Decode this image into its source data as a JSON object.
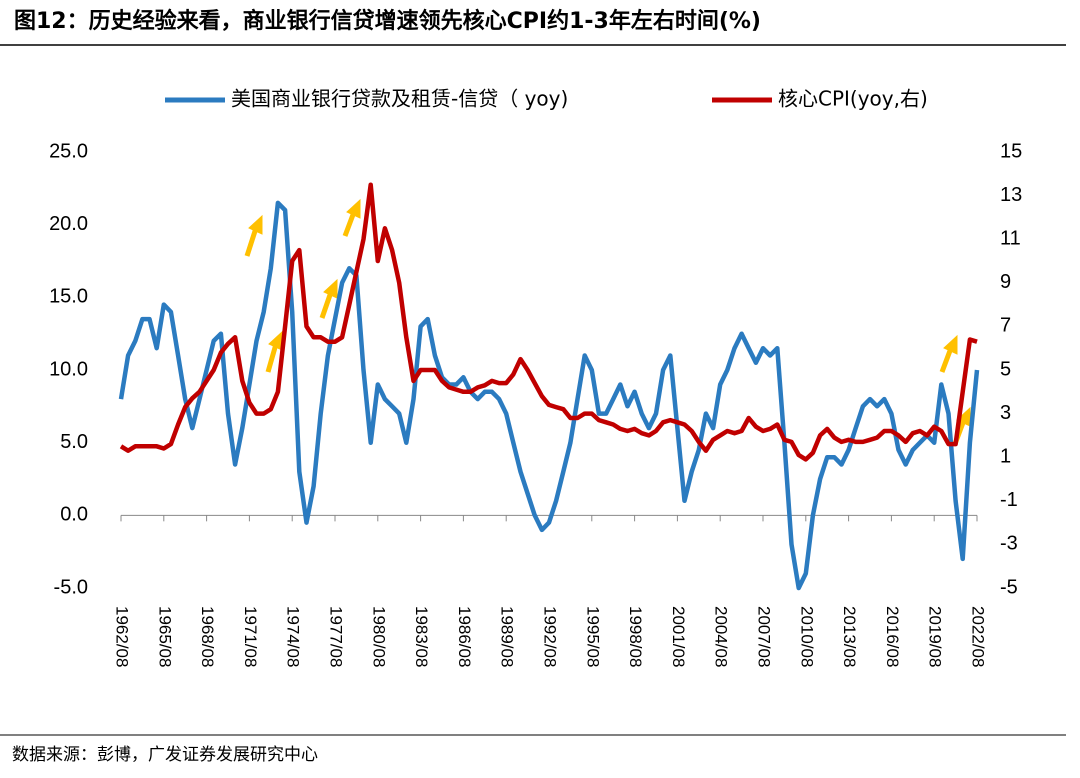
{
  "chart_data": {
    "type": "line",
    "title": "图12：历史经验来看，商业银行信贷增速领先核心CPI约1-3年左右时间(%)",
    "source": "数据来源：彭博，广发证券发展研究中心",
    "x": [
      "1962/08",
      "1963/02",
      "1963/08",
      "1964/02",
      "1964/08",
      "1965/02",
      "1965/08",
      "1966/02",
      "1966/08",
      "1967/02",
      "1967/08",
      "1968/02",
      "1968/08",
      "1969/02",
      "1969/08",
      "1970/02",
      "1970/08",
      "1971/02",
      "1971/08",
      "1972/02",
      "1972/08",
      "1973/02",
      "1973/08",
      "1974/02",
      "1974/08",
      "1975/02",
      "1975/08",
      "1976/02",
      "1976/08",
      "1977/02",
      "1977/08",
      "1978/02",
      "1978/08",
      "1979/02",
      "1979/08",
      "1980/02",
      "1980/08",
      "1981/02",
      "1981/08",
      "1982/02",
      "1982/08",
      "1983/02",
      "1983/08",
      "1984/02",
      "1984/08",
      "1985/02",
      "1985/08",
      "1986/02",
      "1986/08",
      "1987/02",
      "1987/08",
      "1988/02",
      "1988/08",
      "1989/02",
      "1989/08",
      "1990/02",
      "1990/08",
      "1991/02",
      "1991/08",
      "1992/02",
      "1992/08",
      "1993/02",
      "1993/08",
      "1994/02",
      "1994/08",
      "1995/02",
      "1995/08",
      "1996/02",
      "1996/08",
      "1997/02",
      "1997/08",
      "1998/02",
      "1998/08",
      "1999/02",
      "1999/08",
      "2000/02",
      "2000/08",
      "2001/02",
      "2001/08",
      "2002/02",
      "2002/08",
      "2003/02",
      "2003/08",
      "2004/02",
      "2004/08",
      "2005/02",
      "2005/08",
      "2006/02",
      "2006/08",
      "2007/02",
      "2007/08",
      "2008/02",
      "2008/08",
      "2009/02",
      "2009/08",
      "2010/02",
      "2010/08",
      "2011/02",
      "2011/08",
      "2012/02",
      "2012/08",
      "2013/02",
      "2013/08",
      "2014/02",
      "2014/08",
      "2015/02",
      "2015/08",
      "2016/02",
      "2016/08",
      "2017/02",
      "2017/08",
      "2018/02",
      "2018/08",
      "2019/02",
      "2019/08",
      "2020/02",
      "2020/08",
      "2021/02",
      "2021/08",
      "2022/02",
      "2022/08"
    ],
    "series": [
      {
        "name": "美国商业银行贷款及租赁-信贷（ yoy)",
        "color": "#2b7bc0",
        "axis": "y",
        "values": [
          8,
          11,
          12,
          13.5,
          13.5,
          11.5,
          14.5,
          14,
          11,
          8,
          6,
          8,
          10,
          12,
          12.5,
          7,
          3.5,
          6,
          9,
          12,
          14,
          17,
          21.5,
          21,
          14,
          3,
          -0.5,
          2,
          7,
          11,
          13.5,
          16,
          17,
          16.5,
          10,
          5,
          9,
          8,
          7.5,
          7,
          5,
          8,
          13,
          13.5,
          11,
          9.5,
          9,
          9,
          9.5,
          8.5,
          8,
          8.5,
          8.5,
          8,
          7,
          5,
          3,
          1.5,
          0,
          -1,
          -0.5,
          1,
          3,
          5,
          8,
          11,
          10,
          7,
          7,
          8,
          9,
          7.5,
          8.5,
          7,
          6,
          7,
          10,
          11,
          6,
          1,
          3,
          4.5,
          7,
          6,
          9,
          10,
          11.5,
          12.5,
          11.5,
          10.5,
          11.5,
          11,
          11.5,
          5,
          -2,
          -5,
          -4,
          0,
          2.5,
          4,
          4,
          3.5,
          4.5,
          6,
          7.5,
          8,
          7.5,
          8,
          7,
          4.5,
          3.5,
          4.5,
          5,
          5.5,
          5,
          9,
          7,
          1,
          -3,
          5,
          10
        ]
      },
      {
        "name": "核心CPI(yoy,右)",
        "color": "#c00000",
        "axis": "y2",
        "values": [
          1.5,
          1.3,
          1.5,
          1.5,
          1.5,
          1.5,
          1.4,
          1.6,
          2.5,
          3.3,
          3.7,
          4.0,
          4.5,
          5.0,
          5.8,
          6.2,
          6.5,
          4.5,
          3.5,
          3.0,
          3.0,
          3.2,
          4.0,
          7.0,
          10.0,
          10.5,
          7.0,
          6.5,
          6.5,
          6.3,
          6.3,
          6.5,
          8.0,
          9.5,
          11.0,
          13.5,
          10.0,
          11.5,
          10.5,
          9.0,
          6.5,
          4.5,
          5.0,
          5.0,
          5.0,
          4.5,
          4.2,
          4.1,
          4.0,
          4.0,
          4.2,
          4.3,
          4.5,
          4.4,
          4.4,
          4.8,
          5.5,
          5.0,
          4.4,
          3.8,
          3.4,
          3.3,
          3.2,
          2.8,
          2.8,
          3.0,
          3.0,
          2.7,
          2.6,
          2.5,
          2.3,
          2.2,
          2.3,
          2.1,
          2.0,
          2.2,
          2.6,
          2.7,
          2.6,
          2.5,
          2.2,
          1.7,
          1.3,
          1.8,
          2.0,
          2.2,
          2.1,
          2.2,
          2.8,
          2.4,
          2.2,
          2.3,
          2.5,
          1.8,
          1.7,
          1.1,
          0.9,
          1.2,
          2.0,
          2.3,
          1.9,
          1.7,
          1.8,
          1.7,
          1.7,
          1.8,
          1.9,
          2.2,
          2.2,
          2.0,
          1.7,
          2.1,
          2.2,
          2.0,
          2.4,
          2.2,
          1.6,
          1.6,
          4.0,
          6.4,
          6.3
        ]
      }
    ],
    "xlim": [
      "1962/08",
      "2022/08"
    ],
    "xticks": [
      "1962/08",
      "1965/08",
      "1968/08",
      "1971/08",
      "1974/08",
      "1977/08",
      "1980/08",
      "1983/08",
      "1986/08",
      "1989/08",
      "1992/08",
      "1995/08",
      "1998/08",
      "2001/08",
      "2004/08",
      "2007/08",
      "2010/08",
      "2013/08",
      "2016/08",
      "2019/08",
      "2022/08"
    ],
    "ylim": [
      -5,
      25
    ],
    "yticks": [
      {
        "value": -5,
        "label": "-5.0"
      },
      {
        "value": 0,
        "label": "0.0"
      },
      {
        "value": 5,
        "label": "5.0"
      },
      {
        "value": 10,
        "label": "10.0"
      },
      {
        "value": 15,
        "label": "15.0"
      },
      {
        "value": 20,
        "label": "20.0"
      },
      {
        "value": 25,
        "label": "25.0"
      }
    ],
    "y2lim": [
      -5,
      15
    ],
    "y2ticks": [
      -5,
      -3,
      -1,
      1,
      3,
      5,
      7,
      9,
      11,
      13,
      15
    ],
    "legend": "top"
  }
}
